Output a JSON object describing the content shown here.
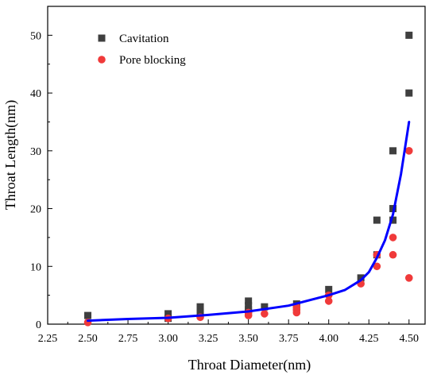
{
  "chart_data": {
    "type": "scatter",
    "title": "",
    "xlabel": "Throat Diameter(nm)",
    "ylabel": "Throat Length(nm)",
    "xlim": [
      2.25,
      4.6
    ],
    "ylim": [
      0,
      55
    ],
    "x_ticks": [
      2.25,
      2.5,
      2.75,
      3.0,
      3.25,
      3.5,
      3.75,
      4.0,
      4.25,
      4.5
    ],
    "x_tick_labels": [
      "2.25",
      "2.50",
      "2.75",
      "3.00",
      "3.25",
      "3.50",
      "3.75",
      "4.00",
      "4.25",
      "4.50"
    ],
    "y_ticks": [
      0,
      10,
      20,
      30,
      40,
      50
    ],
    "y_tick_labels": [
      "0",
      "10",
      "20",
      "30",
      "40",
      "50"
    ],
    "grid": false,
    "legend_position": "top-left",
    "series": [
      {
        "name": "Cavitation",
        "marker": "square",
        "color": "#3f3f3f",
        "x": [
          2.5,
          3.0,
          3.0,
          3.2,
          3.2,
          3.5,
          3.5,
          3.5,
          3.5,
          3.6,
          3.8,
          3.8,
          4.0,
          4.2,
          4.3,
          4.3,
          4.4,
          4.4,
          4.4,
          4.5,
          4.5
        ],
        "y": [
          1.5,
          1.8,
          1.0,
          3.0,
          2.0,
          4.0,
          3.2,
          2.5,
          2.0,
          3.0,
          3.5,
          2.8,
          6.0,
          8.0,
          12.0,
          18.0,
          18.0,
          20.0,
          30.0,
          40.0,
          50.0
        ]
      },
      {
        "name": "Pore blocking",
        "marker": "circle",
        "color": "#f03a3a",
        "x": [
          2.5,
          3.0,
          3.2,
          3.5,
          3.5,
          3.6,
          3.8,
          3.8,
          3.8,
          4.0,
          4.0,
          4.2,
          4.3,
          4.3,
          4.4,
          4.4,
          4.5,
          4.5
        ],
        "y": [
          0.3,
          1.0,
          1.2,
          1.5,
          2.0,
          1.8,
          2.0,
          2.5,
          3.0,
          4.0,
          5.0,
          7.0,
          10.0,
          12.0,
          12.0,
          15.0,
          8.0,
          30.0
        ]
      },
      {
        "name": "",
        "type": "line",
        "color": "#0000ff",
        "x": [
          2.5,
          2.75,
          3.0,
          3.25,
          3.5,
          3.75,
          4.0,
          4.1,
          4.2,
          4.25,
          4.3,
          4.35,
          4.4,
          4.45,
          4.5
        ],
        "y": [
          0.6,
          0.9,
          1.1,
          1.6,
          2.2,
          3.2,
          5.0,
          5.9,
          7.6,
          9.0,
          11.5,
          14.5,
          19.0,
          26.0,
          35.0
        ]
      }
    ]
  }
}
